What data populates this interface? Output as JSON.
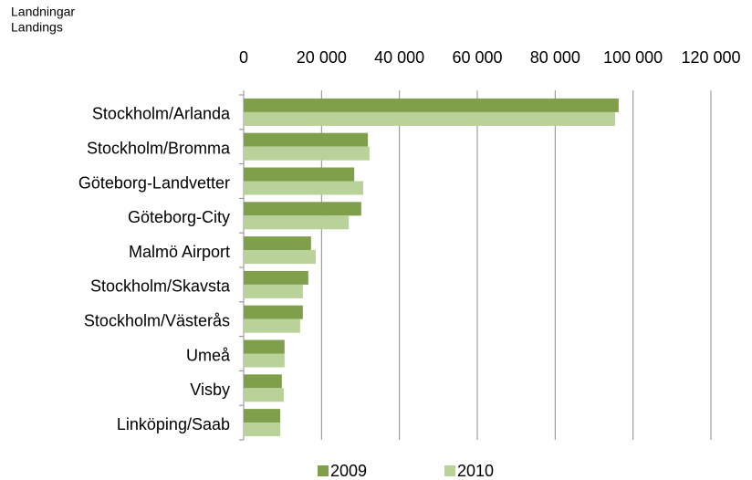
{
  "chart_data": {
    "type": "bar",
    "orientation": "horizontal",
    "axis_title": [
      "Landningar",
      "Landings"
    ],
    "categories": [
      "Stockholm/Arlanda",
      "Stockholm/Bromma",
      "Göteborg-Landvetter",
      "Göteborg-City",
      "Malmö Airport",
      "Stockholm/Skavsta",
      "Stockholm/Västerås",
      "Umeå",
      "Visby",
      "Linköping/Saab"
    ],
    "series": [
      {
        "name": "2009",
        "color": "#809f4b",
        "values": [
          96300,
          31900,
          28400,
          30200,
          17300,
          16600,
          15200,
          10500,
          9800,
          9400
        ]
      },
      {
        "name": "2010",
        "color": "#b8d29a",
        "values": [
          95400,
          32300,
          30700,
          27000,
          18500,
          15200,
          14500,
          10500,
          10300,
          9400
        ]
      }
    ],
    "xlim": [
      0,
      120000
    ],
    "xticks": [
      0,
      {
        "value": 20000,
        "label": "20 000"
      },
      {
        "value": 40000,
        "label": "40 000"
      },
      {
        "value": 60000,
        "label": "60 000"
      },
      {
        "value": 80000,
        "label": "80 000"
      },
      {
        "value": 100000,
        "label": "100 000"
      },
      {
        "value": 120000,
        "label": "120 000"
      }
    ],
    "grid": true,
    "legend": "bottom"
  }
}
